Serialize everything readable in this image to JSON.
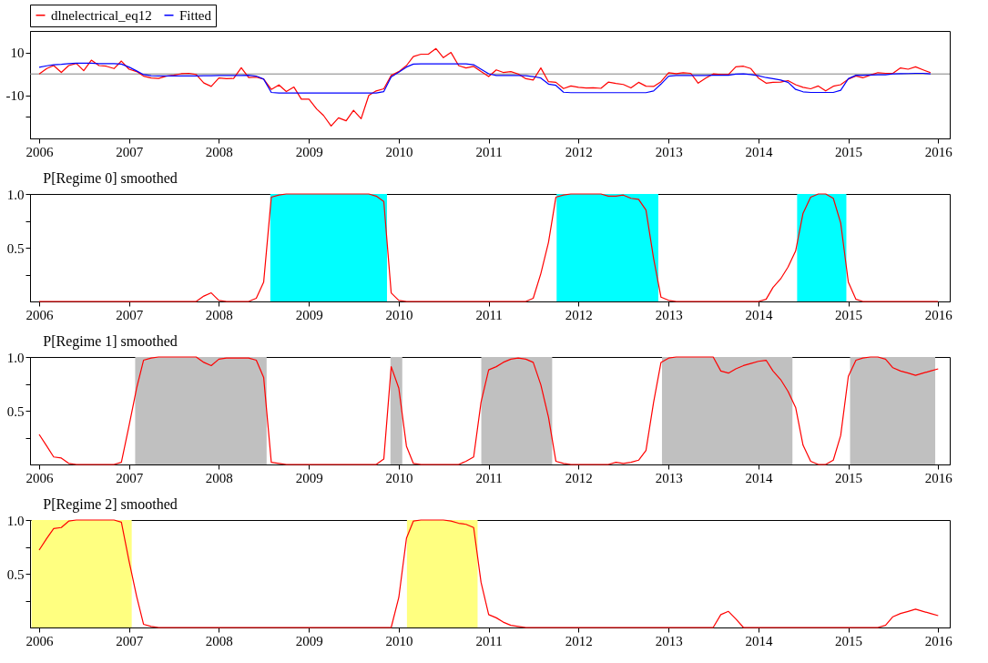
{
  "chart_data": [
    {
      "type": "line",
      "legend": "top left",
      "xlim": [
        "2005-11-25",
        "2016-02-17"
      ],
      "xticks": [
        "2006",
        "2007",
        "2008",
        "2009",
        "2010",
        "2011",
        "2012",
        "2013",
        "2014",
        "2015",
        "2016"
      ],
      "ylim": [
        -30,
        20
      ],
      "yticks": [
        {
          "value": -20,
          "label": null
        },
        -10,
        10
      ],
      "ref_lines": [
        {
          "axis": "y",
          "value": 0,
          "color": "#808080"
        }
      ],
      "x": [
        "2006-01",
        "2006-02",
        "2006-03",
        "2006-04",
        "2006-05",
        "2006-06",
        "2006-07",
        "2006-08",
        "2006-09",
        "2006-10",
        "2006-11",
        "2006-12",
        "2007-01",
        "2007-02",
        "2007-03",
        "2007-04",
        "2007-05",
        "2007-06",
        "2007-07",
        "2007-08",
        "2007-09",
        "2007-10",
        "2007-11",
        "2007-12",
        "2008-01",
        "2008-02",
        "2008-03",
        "2008-04",
        "2008-05",
        "2008-06",
        "2008-07",
        "2008-08",
        "2008-09",
        "2008-10",
        "2008-11",
        "2008-12",
        "2009-01",
        "2009-02",
        "2009-03",
        "2009-04",
        "2009-05",
        "2009-06",
        "2009-07",
        "2009-08",
        "2009-09",
        "2009-10",
        "2009-11",
        "2009-12",
        "2010-01",
        "2010-02",
        "2010-03",
        "2010-04",
        "2010-05",
        "2010-06",
        "2010-07",
        "2010-08",
        "2010-09",
        "2010-10",
        "2010-11",
        "2010-12",
        "2011-01",
        "2011-02",
        "2011-03",
        "2011-04",
        "2011-05",
        "2011-06",
        "2011-07",
        "2011-08",
        "2011-09",
        "2011-10",
        "2011-11",
        "2011-12",
        "2012-01",
        "2012-02",
        "2012-03",
        "2012-04",
        "2012-05",
        "2012-06",
        "2012-07",
        "2012-08",
        "2012-09",
        "2012-10",
        "2012-11",
        "2012-12",
        "2013-01",
        "2013-02",
        "2013-03",
        "2013-04",
        "2013-05",
        "2013-06",
        "2013-07",
        "2013-08",
        "2013-09",
        "2013-10",
        "2013-11",
        "2013-12",
        "2014-01",
        "2014-02",
        "2014-03",
        "2014-04",
        "2014-05",
        "2014-06",
        "2014-07",
        "2014-08",
        "2014-09",
        "2014-10",
        "2014-11",
        "2014-12",
        "2015-01",
        "2015-02",
        "2015-03",
        "2015-04",
        "2015-05",
        "2015-06",
        "2015-07",
        "2015-08",
        "2015-09",
        "2015-10",
        "2015-11",
        "2015-12"
      ],
      "series": [
        {
          "name": "dlnelectrical_eq12",
          "color": "#ff0000",
          "values": [
            0,
            2.5,
            3.9,
            0.7,
            3.9,
            4.9,
            1.5,
            6.4,
            3.9,
            3.6,
            2.5,
            6.0,
            2.2,
            1.1,
            -1.0,
            -1.9,
            -2.1,
            -1.0,
            -0.6,
            0.1,
            0.3,
            -0.3,
            -4.2,
            -5.8,
            -1.9,
            -2.2,
            -2.1,
            2.9,
            -1.7,
            -1.5,
            -2.4,
            -7.2,
            -5.1,
            -8.2,
            -6.1,
            -11.7,
            -11.7,
            -16.3,
            -19.3,
            -24.2,
            -20.4,
            -21.8,
            -16.9,
            -20.8,
            -10.0,
            -7.9,
            -6.9,
            -0.7,
            1.1,
            3.9,
            8.1,
            9.2,
            9.2,
            11.8,
            7.6,
            10.0,
            3.9,
            2.8,
            3.5,
            1.1,
            -1.2,
            1.9,
            0.7,
            1.1,
            0,
            -2.2,
            -2.8,
            2.8,
            -3.6,
            -3.9,
            -6.8,
            -5.6,
            -6.2,
            -6.5,
            -6.4,
            -6.7,
            -3.8,
            -4.4,
            -4.9,
            -6.5,
            -3.9,
            -5.7,
            -5.8,
            -3.6,
            0.6,
            0.1,
            0.6,
            0.3,
            -4.3,
            -1.9,
            0,
            -0.3,
            -0.3,
            3.3,
            3.6,
            2.5,
            -1.9,
            -4.3,
            -3.9,
            -3.8,
            -3.1,
            -5.0,
            -6.2,
            -6.9,
            -5.6,
            -7.9,
            -5.7,
            -5.0,
            -2.4,
            -0.9,
            -1.8,
            -0.5,
            0.6,
            0.3,
            0.3,
            2.8,
            2.2,
            3.3,
            1.9,
            0.6
          ]
        },
        {
          "name": "Fitted",
          "color": "#0000ff",
          "values": [
            3.1,
            3.8,
            4.3,
            4.5,
            4.8,
            5.0,
            5.0,
            5.0,
            4.8,
            4.8,
            4.8,
            4.6,
            3.2,
            1.4,
            -0.3,
            -0.8,
            -0.9,
            -0.9,
            -0.9,
            -0.9,
            -0.9,
            -0.9,
            -0.8,
            -0.8,
            -0.7,
            -0.7,
            -0.7,
            -0.7,
            -0.6,
            -1.0,
            -2.4,
            -8.6,
            -8.9,
            -8.9,
            -8.9,
            -8.9,
            -8.9,
            -8.9,
            -8.9,
            -8.9,
            -8.9,
            -8.9,
            -8.9,
            -8.9,
            -8.9,
            -8.9,
            -8.2,
            -1.4,
            0.8,
            3.2,
            4.6,
            4.7,
            4.7,
            4.7,
            4.7,
            4.7,
            4.7,
            4.7,
            4.3,
            2.2,
            0.1,
            -0.7,
            -0.7,
            -0.7,
            -0.7,
            -0.8,
            -1.2,
            -1.9,
            -4.7,
            -5.3,
            -8.5,
            -8.7,
            -8.7,
            -8.7,
            -8.7,
            -8.7,
            -8.7,
            -8.7,
            -8.7,
            -8.7,
            -8.7,
            -8.7,
            -7.9,
            -4.7,
            -1.0,
            -0.7,
            -0.7,
            -0.7,
            -0.7,
            -0.7,
            -0.6,
            -0.6,
            -0.6,
            -0.1,
            0,
            -0.3,
            -0.8,
            -1.7,
            -2.2,
            -2.8,
            -3.9,
            -7.2,
            -8.3,
            -8.6,
            -8.6,
            -8.6,
            -8.6,
            -7.6,
            -2.2,
            -0.6,
            -0.6,
            -0.5,
            -0.4,
            -0.4,
            0,
            0.1,
            0.2,
            0.3,
            0.3,
            0
          ]
        }
      ]
    },
    {
      "type": "line",
      "title": "P[Regime 0] smoothed",
      "xlim": [
        "2005-11-25",
        "2016-02-17"
      ],
      "xticks": [
        "2006",
        "2007",
        "2008",
        "2009",
        "2010",
        "2011",
        "2012",
        "2013",
        "2014",
        "2015",
        "2016"
      ],
      "ylim": [
        0,
        1
      ],
      "yticks": [
        {
          "value": 0.25,
          "label": null
        },
        0.5,
        {
          "value": 0.75,
          "label": null
        },
        {
          "value": 1,
          "label": "1.0"
        }
      ],
      "bands": [
        {
          "axis": "x",
          "from": "2008-07-28",
          "to": "2009-11-14",
          "color": "#00ffff"
        },
        {
          "axis": "x",
          "from": "2011-10-04",
          "to": "2012-11-20",
          "color": "#00ffff"
        },
        {
          "axis": "x",
          "from": "2014-06-07",
          "to": "2014-12-24",
          "color": "#00ffff"
        }
      ],
      "x": [
        "2006-01",
        "2006-02",
        "2006-03",
        "2006-04",
        "2006-05",
        "2006-06",
        "2006-07",
        "2006-08",
        "2006-09",
        "2006-10",
        "2006-11",
        "2006-12",
        "2007-01",
        "2007-02",
        "2007-03",
        "2007-04",
        "2007-05",
        "2007-06",
        "2007-07",
        "2007-08",
        "2007-09",
        "2007-10",
        "2007-11",
        "2007-12",
        "2008-01",
        "2008-02",
        "2008-03",
        "2008-04",
        "2008-05",
        "2008-06",
        "2008-07",
        "2008-08",
        "2008-09",
        "2008-10",
        "2008-11",
        "2008-12",
        "2009-01",
        "2009-02",
        "2009-03",
        "2009-04",
        "2009-05",
        "2009-06",
        "2009-07",
        "2009-08",
        "2009-09",
        "2009-10",
        "2009-11",
        "2009-12",
        "2010-01",
        "2010-02",
        "2010-03",
        "2010-04",
        "2010-05",
        "2010-06",
        "2010-07",
        "2010-08",
        "2010-09",
        "2010-10",
        "2010-11",
        "2010-12",
        "2011-01",
        "2011-02",
        "2011-03",
        "2011-04",
        "2011-05",
        "2011-06",
        "2011-07",
        "2011-08",
        "2011-09",
        "2011-10",
        "2011-11",
        "2011-12",
        "2012-01",
        "2012-02",
        "2012-03",
        "2012-04",
        "2012-05",
        "2012-06",
        "2012-07",
        "2012-08",
        "2012-09",
        "2012-10",
        "2012-11",
        "2012-12",
        "2013-01",
        "2013-02",
        "2013-03",
        "2013-04",
        "2013-05",
        "2013-06",
        "2013-07",
        "2013-08",
        "2013-09",
        "2013-10",
        "2013-11",
        "2013-12",
        "2014-01",
        "2014-02",
        "2014-03",
        "2014-04",
        "2014-05",
        "2014-06",
        "2014-07",
        "2014-08",
        "2014-09",
        "2014-10",
        "2014-11",
        "2014-12",
        "2015-01",
        "2015-02",
        "2015-03",
        "2015-04",
        "2015-05",
        "2015-06",
        "2015-07",
        "2015-08",
        "2015-09",
        "2015-10",
        "2015-11",
        "2015-12",
        "2016-01"
      ],
      "series": [
        {
          "color": "#ff0000",
          "values": [
            0,
            0,
            0,
            0,
            0,
            0,
            0,
            0,
            0,
            0,
            0,
            0,
            0,
            0,
            0,
            0,
            0,
            0,
            0,
            0,
            0,
            0,
            0.05,
            0.08,
            0.01,
            0,
            0,
            0,
            0,
            0.03,
            0.18,
            0.97,
            0.99,
            1,
            1,
            1,
            1,
            1,
            1,
            1,
            1,
            1,
            1,
            1,
            1,
            0.98,
            0.93,
            0.08,
            0.01,
            0,
            0,
            0,
            0,
            0,
            0,
            0,
            0,
            0,
            0,
            0,
            0,
            0,
            0,
            0,
            0,
            0,
            0.03,
            0.26,
            0.55,
            0.97,
            0.99,
            1,
            1,
            1,
            1,
            1,
            0.98,
            0.98,
            0.99,
            0.96,
            0.95,
            0.85,
            0.4,
            0.04,
            0.01,
            0,
            0,
            0,
            0,
            0,
            0,
            0,
            0,
            0,
            0,
            0,
            0,
            0.02,
            0.13,
            0.21,
            0.32,
            0.47,
            0.82,
            0.97,
            1,
            1,
            0.96,
            0.73,
            0.18,
            0.02,
            0,
            0,
            0,
            0,
            0,
            0,
            0,
            0,
            0,
            0,
            0
          ]
        }
      ]
    },
    {
      "type": "line",
      "title": "P[Regime 1] smoothed",
      "xlim": [
        "2005-11-25",
        "2016-02-17"
      ],
      "xticks": [
        "2006",
        "2007",
        "2008",
        "2009",
        "2010",
        "2011",
        "2012",
        "2013",
        "2014",
        "2015",
        "2016"
      ],
      "ylim": [
        0,
        1
      ],
      "yticks": [
        {
          "value": 0.25,
          "label": null
        },
        0.5,
        {
          "value": 0.75,
          "label": null
        },
        {
          "value": 1,
          "label": "1.0"
        }
      ],
      "bands": [
        {
          "axis": "x",
          "from": "2007-01-26",
          "to": "2008-07-13",
          "color": "#c0c0c0"
        },
        {
          "axis": "x",
          "from": "2009-11-28",
          "to": "2010-01-15",
          "color": "#c0c0c0"
        },
        {
          "axis": "x",
          "from": "2010-12-02",
          "to": "2011-09-16",
          "color": "#c0c0c0"
        },
        {
          "axis": "x",
          "from": "2012-12-05",
          "to": "2014-05-19",
          "color": "#c0c0c0"
        },
        {
          "axis": "x",
          "from": "2015-01-08",
          "to": "2015-12-20",
          "color": "#c0c0c0"
        }
      ],
      "x": [
        "2006-01",
        "2006-02",
        "2006-03",
        "2006-04",
        "2006-05",
        "2006-06",
        "2006-07",
        "2006-08",
        "2006-09",
        "2006-10",
        "2006-11",
        "2006-12",
        "2007-01",
        "2007-02",
        "2007-03",
        "2007-04",
        "2007-05",
        "2007-06",
        "2007-07",
        "2007-08",
        "2007-09",
        "2007-10",
        "2007-11",
        "2007-12",
        "2008-01",
        "2008-02",
        "2008-03",
        "2008-04",
        "2008-05",
        "2008-06",
        "2008-07",
        "2008-08",
        "2008-09",
        "2008-10",
        "2008-11",
        "2008-12",
        "2009-01",
        "2009-02",
        "2009-03",
        "2009-04",
        "2009-05",
        "2009-06",
        "2009-07",
        "2009-08",
        "2009-09",
        "2009-10",
        "2009-11",
        "2009-12",
        "2010-01",
        "2010-02",
        "2010-03",
        "2010-04",
        "2010-05",
        "2010-06",
        "2010-07",
        "2010-08",
        "2010-09",
        "2010-10",
        "2010-11",
        "2010-12",
        "2011-01",
        "2011-02",
        "2011-03",
        "2011-04",
        "2011-05",
        "2011-06",
        "2011-07",
        "2011-08",
        "2011-09",
        "2011-10",
        "2011-11",
        "2011-12",
        "2012-01",
        "2012-02",
        "2012-03",
        "2012-04",
        "2012-05",
        "2012-06",
        "2012-07",
        "2012-08",
        "2012-09",
        "2012-10",
        "2012-11",
        "2012-12",
        "2013-01",
        "2013-02",
        "2013-03",
        "2013-04",
        "2013-05",
        "2013-06",
        "2013-07",
        "2013-08",
        "2013-09",
        "2013-10",
        "2013-11",
        "2013-12",
        "2014-01",
        "2014-02",
        "2014-03",
        "2014-04",
        "2014-05",
        "2014-06",
        "2014-07",
        "2014-08",
        "2014-09",
        "2014-10",
        "2014-11",
        "2014-12",
        "2015-01",
        "2015-02",
        "2015-03",
        "2015-04",
        "2015-05",
        "2015-06",
        "2015-07",
        "2015-08",
        "2015-09",
        "2015-10",
        "2015-11",
        "2015-12",
        "2016-01"
      ],
      "series": [
        {
          "color": "#ff0000",
          "values": [
            0.28,
            0.17,
            0.07,
            0.06,
            0.01,
            0,
            0,
            0,
            0,
            0,
            0,
            0.02,
            0.36,
            0.71,
            0.97,
            0.99,
            1,
            1,
            1,
            1,
            1,
            1,
            0.95,
            0.92,
            0.98,
            0.99,
            0.99,
            0.99,
            0.99,
            0.97,
            0.81,
            0.02,
            0.01,
            0,
            0,
            0,
            0,
            0,
            0,
            0,
            0,
            0,
            0,
            0,
            0,
            0,
            0.05,
            0.91,
            0.71,
            0.17,
            0.01,
            0,
            0,
            0,
            0,
            0,
            0,
            0.03,
            0.07,
            0.58,
            0.88,
            0.91,
            0.95,
            0.98,
            0.99,
            0.98,
            0.95,
            0.74,
            0.44,
            0.03,
            0.01,
            0,
            0,
            0,
            0,
            0,
            0,
            0.02,
            0.01,
            0.02,
            0.04,
            0.13,
            0.58,
            0.95,
            0.99,
            1,
            1,
            1,
            1,
            1,
            1,
            0.87,
            0.85,
            0.89,
            0.92,
            0.94,
            0.96,
            0.97,
            0.87,
            0.79,
            0.68,
            0.53,
            0.18,
            0.03,
            0,
            0,
            0.04,
            0.27,
            0.82,
            0.97,
            0.99,
            1,
            1,
            0.98,
            0.9,
            0.87,
            0.85,
            0.83,
            0.85,
            0.87,
            0.89
          ]
        }
      ]
    },
    {
      "type": "line",
      "title": "P[Regime 2] smoothed",
      "xlim": [
        "2005-11-25",
        "2016-02-17"
      ],
      "xticks": [
        "2006",
        "2007",
        "2008",
        "2009",
        "2010",
        "2011",
        "2012",
        "2013",
        "2014",
        "2015",
        "2016"
      ],
      "ylim": [
        0,
        1
      ],
      "yticks": [
        {
          "value": 0.25,
          "label": null
        },
        0.5,
        {
          "value": 0.75,
          "label": null
        },
        {
          "value": 1,
          "label": "1.0"
        }
      ],
      "bands": [
        {
          "axis": "x",
          "from": "2005-12-01",
          "to": "2007-01-12",
          "color": "#ffff80"
        },
        {
          "axis": "x",
          "from": "2010-02-03",
          "to": "2010-11-17",
          "color": "#ffff80"
        }
      ],
      "x": [
        "2006-01",
        "2006-02",
        "2006-03",
        "2006-04",
        "2006-05",
        "2006-06",
        "2006-07",
        "2006-08",
        "2006-09",
        "2006-10",
        "2006-11",
        "2006-12",
        "2007-01",
        "2007-02",
        "2007-03",
        "2007-04",
        "2007-05",
        "2007-06",
        "2007-07",
        "2007-08",
        "2007-09",
        "2007-10",
        "2007-11",
        "2007-12",
        "2008-01",
        "2008-02",
        "2008-03",
        "2008-04",
        "2008-05",
        "2008-06",
        "2008-07",
        "2008-08",
        "2008-09",
        "2008-10",
        "2008-11",
        "2008-12",
        "2009-01",
        "2009-02",
        "2009-03",
        "2009-04",
        "2009-05",
        "2009-06",
        "2009-07",
        "2009-08",
        "2009-09",
        "2009-10",
        "2009-11",
        "2009-12",
        "2010-01",
        "2010-02",
        "2010-03",
        "2010-04",
        "2010-05",
        "2010-06",
        "2010-07",
        "2010-08",
        "2010-09",
        "2010-10",
        "2010-11",
        "2010-12",
        "2011-01",
        "2011-02",
        "2011-03",
        "2011-04",
        "2011-05",
        "2011-06",
        "2011-07",
        "2011-08",
        "2011-09",
        "2011-10",
        "2011-11",
        "2011-12",
        "2012-01",
        "2012-02",
        "2012-03",
        "2012-04",
        "2012-05",
        "2012-06",
        "2012-07",
        "2012-08",
        "2012-09",
        "2012-10",
        "2012-11",
        "2012-12",
        "2013-01",
        "2013-02",
        "2013-03",
        "2013-04",
        "2013-05",
        "2013-06",
        "2013-07",
        "2013-08",
        "2013-09",
        "2013-10",
        "2013-11",
        "2013-12",
        "2014-01",
        "2014-02",
        "2014-03",
        "2014-04",
        "2014-05",
        "2014-06",
        "2014-07",
        "2014-08",
        "2014-09",
        "2014-10",
        "2014-11",
        "2014-12",
        "2015-01",
        "2015-02",
        "2015-03",
        "2015-04",
        "2015-05",
        "2015-06",
        "2015-07",
        "2015-08",
        "2015-09",
        "2015-10",
        "2015-11",
        "2015-12",
        "2016-01"
      ],
      "series": [
        {
          "color": "#ff0000",
          "values": [
            0.72,
            0.83,
            0.92,
            0.93,
            0.99,
            1,
            1,
            1,
            1,
            1,
            1,
            0.98,
            0.62,
            0.29,
            0.03,
            0.01,
            0,
            0,
            0,
            0,
            0,
            0,
            0,
            0,
            0,
            0,
            0,
            0,
            0,
            0,
            0,
            0,
            0,
            0,
            0,
            0,
            0,
            0,
            0,
            0,
            0,
            0,
            0,
            0,
            0,
            0,
            0,
            0,
            0.28,
            0.83,
            0.99,
            1,
            1,
            1,
            1,
            0.99,
            0.97,
            0.96,
            0.93,
            0.42,
            0.12,
            0.09,
            0.05,
            0.02,
            0.01,
            0,
            0,
            0,
            0,
            0,
            0,
            0,
            0,
            0,
            0,
            0,
            0,
            0,
            0,
            0,
            0,
            0,
            0,
            0,
            0,
            0,
            0,
            0,
            0,
            0,
            0,
            0.12,
            0.15,
            0.08,
            0,
            0,
            0,
            0,
            0,
            0,
            0,
            0,
            0,
            0,
            0,
            0,
            0,
            0,
            0,
            0,
            0,
            0,
            0,
            0.02,
            0.1,
            0.13,
            0.15,
            0.17,
            0.15,
            0.13,
            0.11
          ]
        }
      ]
    }
  ]
}
